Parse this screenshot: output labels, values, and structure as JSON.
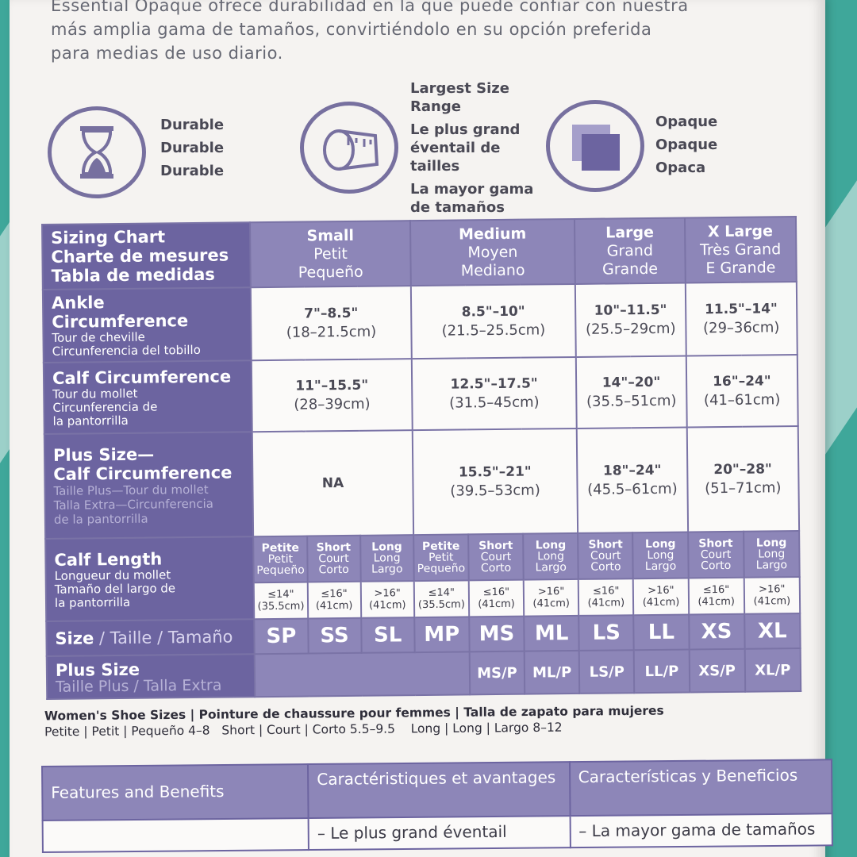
{
  "intro_lines": [
    "Essential Opaque ofrece durabilidad en la que puede confiar con nuestra",
    "más amplia gama de tamaños, convirtiéndolo en su opción preferida",
    "para medias de uso diario."
  ],
  "features": {
    "durable": {
      "icon": "hourglass-icon",
      "lines": [
        "Durable",
        "Durable",
        "Durable"
      ]
    },
    "size_range": {
      "icon": "measuring-tape-icon",
      "lines": [
        "Largest Size",
        "Range",
        "Le plus grand",
        "éventail de",
        "tailles",
        "La mayor gama",
        "de tamaños"
      ]
    },
    "opaque": {
      "icon": "opaque-swatch-icon",
      "lines": [
        "Opaque",
        "Opaque",
        "Opaca"
      ]
    }
  },
  "sizing_chart": {
    "title_lines": [
      "Sizing Chart",
      "Charte de mesures",
      "Tabla de medidas"
    ],
    "columns": [
      {
        "lines": [
          "Small",
          "Petit",
          "Pequeño"
        ]
      },
      {
        "lines": [
          "Medium",
          "Moyen",
          "Mediano"
        ]
      },
      {
        "lines": [
          "Large",
          "Grand",
          "Grande"
        ]
      },
      {
        "lines": [
          "X Large",
          "Très Grand",
          "E Grande"
        ]
      }
    ],
    "ankle": {
      "title": "Ankle Circumference",
      "sub": [
        "Tour de cheville",
        "Circunferencia del tobillo"
      ],
      "values": [
        [
          "7\"–8.5\"",
          "(18–21.5cm)"
        ],
        [
          "8.5\"–10\"",
          "(21.5–25.5cm)"
        ],
        [
          "10\"–11.5\"",
          "(25.5–29cm)"
        ],
        [
          "11.5\"–14\"",
          "(29–36cm)"
        ]
      ]
    },
    "calf": {
      "title": "Calf Circumference",
      "sub": [
        "Tour du mollet",
        "Circunferencia de",
        "la pantorrilla"
      ],
      "values": [
        [
          "11\"–15.5\"",
          "(28–39cm)"
        ],
        [
          "12.5\"–17.5\"",
          "(31.5–45cm)"
        ],
        [
          "14\"–20\"",
          "(35.5–51cm)"
        ],
        [
          "16\"–24\"",
          "(41–61cm)"
        ]
      ]
    },
    "plus_calf": {
      "title": [
        "Plus Size—",
        "Calf Circumference"
      ],
      "sub": [
        "Taille Plus—Tour du mollet",
        "Talla Extra—Circunferencia",
        "de la pantorrilla"
      ],
      "na": "NA",
      "values": [
        [
          "15.5\"–21\"",
          "(39.5–53cm)"
        ],
        [
          "18\"–24\"",
          "(45.5–61cm)"
        ],
        [
          "20\"–28\"",
          "(51–71cm)"
        ]
      ]
    },
    "calf_length": {
      "title": "Calf Length",
      "sub": [
        "Longueur du mollet",
        "Tamaño del largo de",
        "la pantorrilla"
      ],
      "headers": [
        [
          "Petite",
          "Petit",
          "Pequeño"
        ],
        [
          "Short",
          "Court",
          "Corto"
        ],
        [
          "Long",
          "Long",
          "Largo"
        ],
        [
          "Petite",
          "Petit",
          "Pequeño"
        ],
        [
          "Short",
          "Court",
          "Corto"
        ],
        [
          "Long",
          "Long",
          "Largo"
        ],
        [
          "Short",
          "Court",
          "Corto"
        ],
        [
          "Long",
          "Long",
          "Largo"
        ],
        [
          "Short",
          "Court",
          "Corto"
        ],
        [
          "Long",
          "Long",
          "Largo"
        ]
      ],
      "values": [
        [
          "≤14\"",
          "(35.5cm)"
        ],
        [
          "≤16\"",
          "(41cm)"
        ],
        [
          ">16\"",
          "(41cm)"
        ],
        [
          "≤14\"",
          "(35.5cm)"
        ],
        [
          "≤16\"",
          "(41cm)"
        ],
        [
          ">16\"",
          "(41cm)"
        ],
        [
          "≤16\"",
          "(41cm)"
        ],
        [
          ">16\"",
          "(41cm)"
        ],
        [
          "≤16\"",
          "(41cm)"
        ],
        [
          ">16\"",
          "(41cm)"
        ]
      ]
    },
    "size_row": {
      "label_main": "Size",
      "label_rest": " / Taille / Tamaño",
      "codes": [
        "SP",
        "SS",
        "SL",
        "MP",
        "MS",
        "ML",
        "LS",
        "LL",
        "XS",
        "XL"
      ]
    },
    "plus_row": {
      "title": "Plus Size",
      "sub": "Taille Plus / Talla Extra",
      "codes": [
        "MS/P",
        "ML/P",
        "LS/P",
        "LL/P",
        "XS/P",
        "XL/P"
      ]
    }
  },
  "shoe_sizes": {
    "title": "Women's Shoe Sizes | Pointure de chaussure pour femmes | Talla de zapato para mujeres",
    "petite": "Petite | Petit | Pequeño 4–8",
    "short": "Short | Court | Corto 5.5–9.5",
    "long": "Long | Long | Largo 8–12"
  },
  "features_table": {
    "headers": [
      "Features and Benefits",
      "Caractéristiques et avantages",
      "Características y Beneficios"
    ],
    "row1": [
      "",
      "– Le plus grand éventail",
      "– La mayor gama de tamaños"
    ]
  },
  "colors": {
    "accent": "#8d86b8",
    "accent_dark": "#6c64a0",
    "icon_stroke": "#77709f",
    "background": "#3fa79a"
  }
}
